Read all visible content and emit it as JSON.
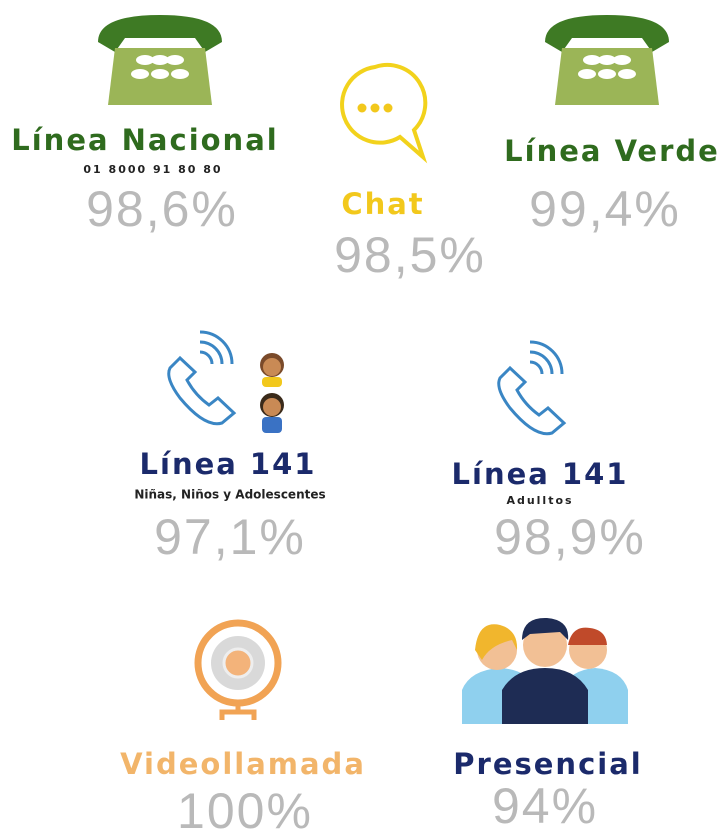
{
  "items": [
    {
      "title": "Línea Nacional",
      "subtitle": "01 8000 91 80 80",
      "value": "98,6%"
    },
    {
      "title": "Chat",
      "value": "98,5%"
    },
    {
      "title": "Línea Verde",
      "value": "99,4%"
    },
    {
      "title": "Línea 141",
      "subtitle": "Niñas, Niños y Adolescentes",
      "value": "97,1%"
    },
    {
      "title": "Línea 141",
      "subtitle": "Adulltos",
      "value": "98,9%"
    },
    {
      "title": "Videollamada",
      "value": "100%"
    },
    {
      "title": "Presencial",
      "value": "94%"
    }
  ]
}
